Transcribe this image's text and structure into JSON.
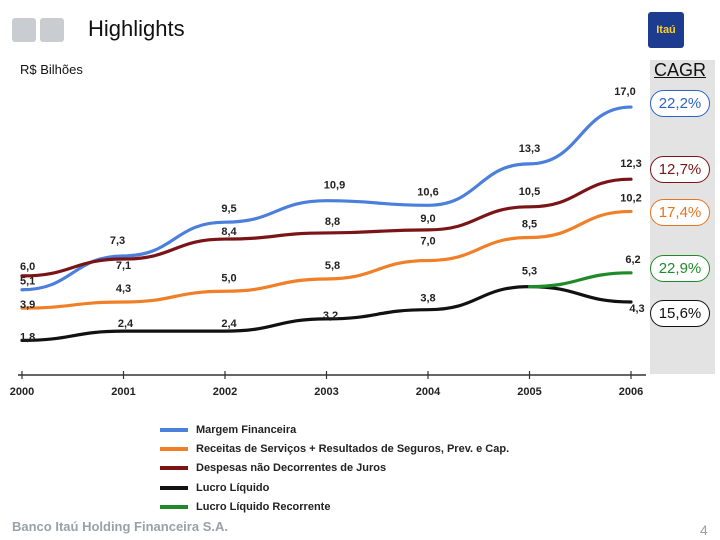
{
  "header": {
    "title": "Highlights",
    "unit": "R$ Bilhões"
  },
  "logo": {
    "text": "Itaú",
    "color": "#1d3c8f"
  },
  "cagr": {
    "title": "CAGR",
    "items": [
      {
        "label": "22,2%",
        "color": "#2d63c8"
      },
      {
        "label": "12,7%",
        "color": "#7a1416"
      },
      {
        "label": "17,4%",
        "color": "#e8731c"
      },
      {
        "label": "22,9%",
        "color": "#1f8a2a"
      },
      {
        "label": "15,6%",
        "color": "#111111"
      }
    ]
  },
  "footer": {
    "company": "Banco Itaú Holding Financeira S.A.",
    "page": "4"
  },
  "chart_data": {
    "type": "line",
    "x": [
      "2000",
      "2001",
      "2002",
      "2003",
      "2004",
      "2005",
      "2006"
    ],
    "ylim": [
      0,
      18
    ],
    "grid": false,
    "legend_position": "bottom",
    "series": [
      {
        "name": "Margem Financeira",
        "color": "#4a7fdc",
        "values": [
          5.1,
          7.3,
          9.5,
          10.9,
          10.6,
          13.3,
          17.0
        ],
        "labels": [
          "5,1",
          "7,3",
          "9,5",
          "10,9",
          "10,6",
          "13,3",
          "17,0"
        ]
      },
      {
        "name": "Receitas de Serviços + Resultados de Seguros, Prev. e Cap.",
        "color": "#f07f27",
        "values": [
          3.9,
          4.3,
          5.0,
          5.8,
          7.0,
          8.5,
          10.2
        ],
        "labels": [
          "3,9",
          "4,3",
          "5,0",
          "5,8",
          "7,0",
          "8,5",
          "10,2"
        ]
      },
      {
        "name": "Despesas não Decorrentes de Juros",
        "color": "#7a1416",
        "values": [
          6.0,
          7.1,
          8.4,
          8.8,
          9.0,
          10.5,
          12.3
        ],
        "labels": [
          "6,0",
          "7,1",
          "8,4",
          "8,8",
          "9,0",
          "10,5",
          "12,3"
        ]
      },
      {
        "name": "Lucro Líquido",
        "color": "#111111",
        "values": [
          1.8,
          2.4,
          2.4,
          3.2,
          3.8,
          5.3,
          4.3
        ],
        "labels": [
          "1,8",
          "2,4",
          "2,4",
          "3,2",
          "3,8",
          "5,3",
          "4,3"
        ]
      },
      {
        "name": "Lucro Líquido Recorrente",
        "color": "#1f8a2a",
        "values": [
          null,
          null,
          null,
          null,
          null,
          5.3,
          6.2
        ],
        "labels": [
          "",
          "",
          "",
          "",
          "",
          "",
          "6,2"
        ]
      }
    ]
  }
}
